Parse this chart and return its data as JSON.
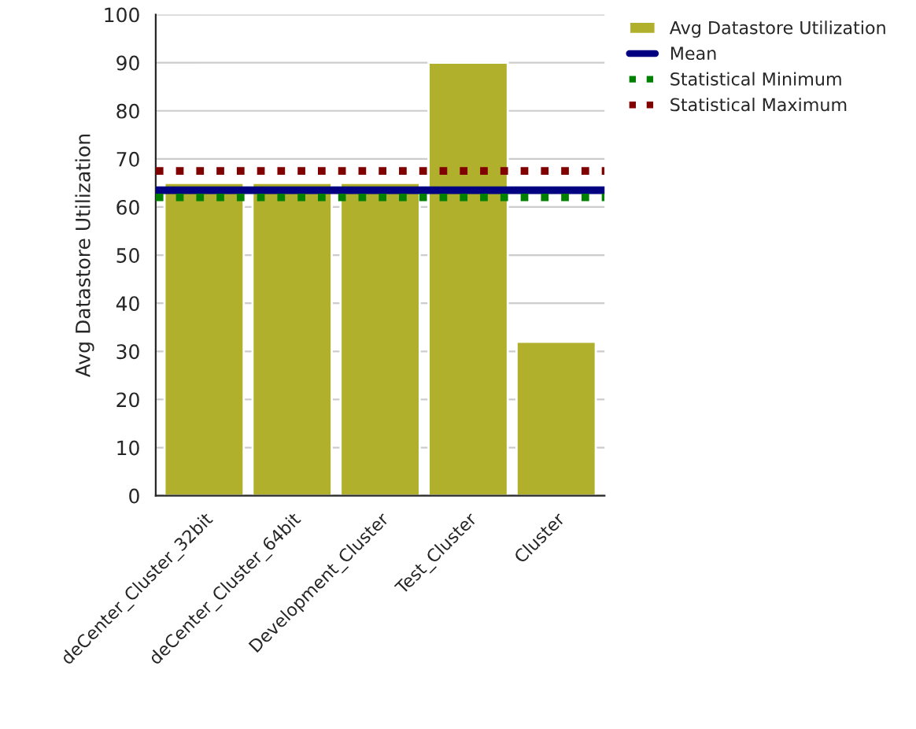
{
  "chart_data": {
    "type": "bar",
    "ylabel": "Avg Datastore Utilization",
    "categories": [
      "deCenter_Cluster_32bit",
      "deCenter_Cluster_64bit",
      "Development_Cluster",
      "Test_Cluster",
      "Cluster"
    ],
    "series": [
      {
        "name": "Avg Datastore Utilization",
        "color": "#b0b02c",
        "values": [
          65,
          65,
          65,
          90,
          32
        ]
      }
    ],
    "ylim": [
      0,
      100
    ],
    "yticks": [
      0,
      10,
      20,
      30,
      40,
      50,
      60,
      70,
      80,
      90,
      100
    ],
    "grid": "y",
    "legend": "top right",
    "ref_lines": [
      {
        "axis": "y",
        "value": 63.5,
        "label": "Mean",
        "color": "#000080",
        "line_style": "solid"
      },
      {
        "axis": "y",
        "value": 62,
        "label": "Statistical Minimum",
        "color": "#008000",
        "line_style": "dotted"
      },
      {
        "axis": "y",
        "value": 67.5,
        "label": "Statistical Maximum",
        "color": "#800000",
        "line_style": "dotted"
      }
    ]
  }
}
